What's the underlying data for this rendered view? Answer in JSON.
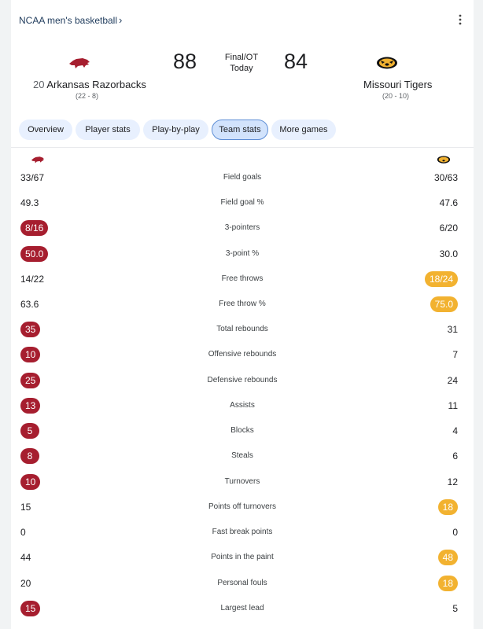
{
  "header": {
    "league": "NCAA men's basketball",
    "chevron": "›",
    "menu_icon": "vertical-dots-icon"
  },
  "game": {
    "status": "Final/OT",
    "date": "Today",
    "home": {
      "rank": "20",
      "name": "Arkansas Razorbacks",
      "record": "(22 - 8)",
      "score": "88",
      "color": "#a61e2f",
      "logo": "razorback-logo-icon"
    },
    "away": {
      "name": "Missouri Tigers",
      "record": "(20 - 10)",
      "score": "84",
      "color": "#f2b230",
      "logo": "tiger-logo-icon"
    }
  },
  "tabs": [
    "Overview",
    "Player stats",
    "Play-by-play",
    "Team stats",
    "More games"
  ],
  "active_tab": "Team stats",
  "stats": [
    {
      "label": "Field goals",
      "left": "33/67",
      "right": "30/63",
      "hl": ""
    },
    {
      "label": "Field goal %",
      "left": "49.3",
      "right": "47.6",
      "hl": ""
    },
    {
      "label": "3-pointers",
      "left": "8/16",
      "right": "6/20",
      "hl": "left"
    },
    {
      "label": "3-point %",
      "left": "50.0",
      "right": "30.0",
      "hl": "left"
    },
    {
      "label": "Free throws",
      "left": "14/22",
      "right": "18/24",
      "hl": "right"
    },
    {
      "label": "Free throw %",
      "left": "63.6",
      "right": "75.0",
      "hl": "right"
    },
    {
      "label": "Total rebounds",
      "left": "35",
      "right": "31",
      "hl": "left"
    },
    {
      "label": "Offensive rebounds",
      "left": "10",
      "right": "7",
      "hl": "left"
    },
    {
      "label": "Defensive rebounds",
      "left": "25",
      "right": "24",
      "hl": "left"
    },
    {
      "label": "Assists",
      "left": "13",
      "right": "11",
      "hl": "left"
    },
    {
      "label": "Blocks",
      "left": "5",
      "right": "4",
      "hl": "left"
    },
    {
      "label": "Steals",
      "left": "8",
      "right": "6",
      "hl": "left"
    },
    {
      "label": "Turnovers",
      "left": "10",
      "right": "12",
      "hl": "left"
    },
    {
      "label": "Points off turnovers",
      "left": "15",
      "right": "18",
      "hl": "right"
    },
    {
      "label": "Fast break points",
      "left": "0",
      "right": "0",
      "hl": ""
    },
    {
      "label": "Points in the paint",
      "left": "44",
      "right": "48",
      "hl": "right"
    },
    {
      "label": "Personal fouls",
      "left": "20",
      "right": "18",
      "hl": "right"
    },
    {
      "label": "Largest lead",
      "left": "15",
      "right": "5",
      "hl": "left"
    }
  ]
}
